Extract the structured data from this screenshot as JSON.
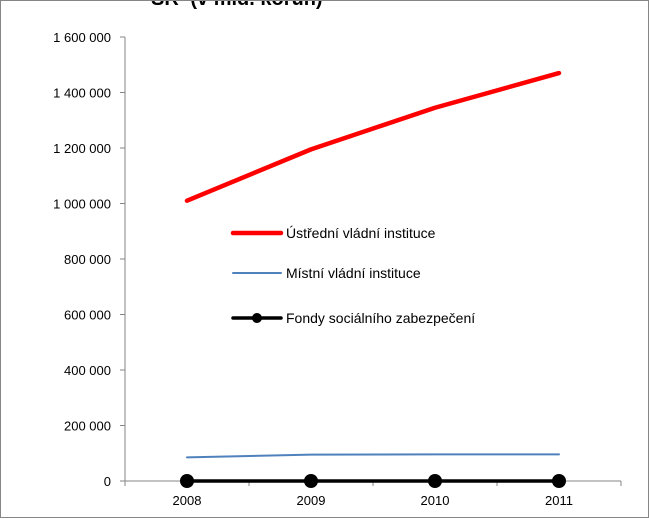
{
  "chart_data": {
    "type": "line",
    "title": "SR",
    "subtitle": "(v mld. korun)",
    "categories": [
      "2008",
      "2009",
      "2010",
      "2011"
    ],
    "y_ticks": [
      "0",
      "200 000",
      "400 000",
      "600 000",
      "800 000",
      "1 000 000",
      "1 200 000",
      "1 400 000",
      "1 600 000"
    ],
    "ylim": [
      0,
      1600000
    ],
    "grid": false,
    "legend_position": "center",
    "series": [
      {
        "name": "Ústřední vládní instituce",
        "values": [
          1010000,
          1195000,
          1345000,
          1470000
        ],
        "color": "#ff0000",
        "markers": false
      },
      {
        "name": "Místní vládní instituce",
        "values": [
          85000,
          95000,
          96000,
          96000
        ],
        "color": "#4f81bd",
        "markers": false
      },
      {
        "name": "Fondy sociálního zabezpečení",
        "values": [
          0,
          0,
          0,
          0
        ],
        "color": "#000000",
        "markers": true
      }
    ]
  }
}
